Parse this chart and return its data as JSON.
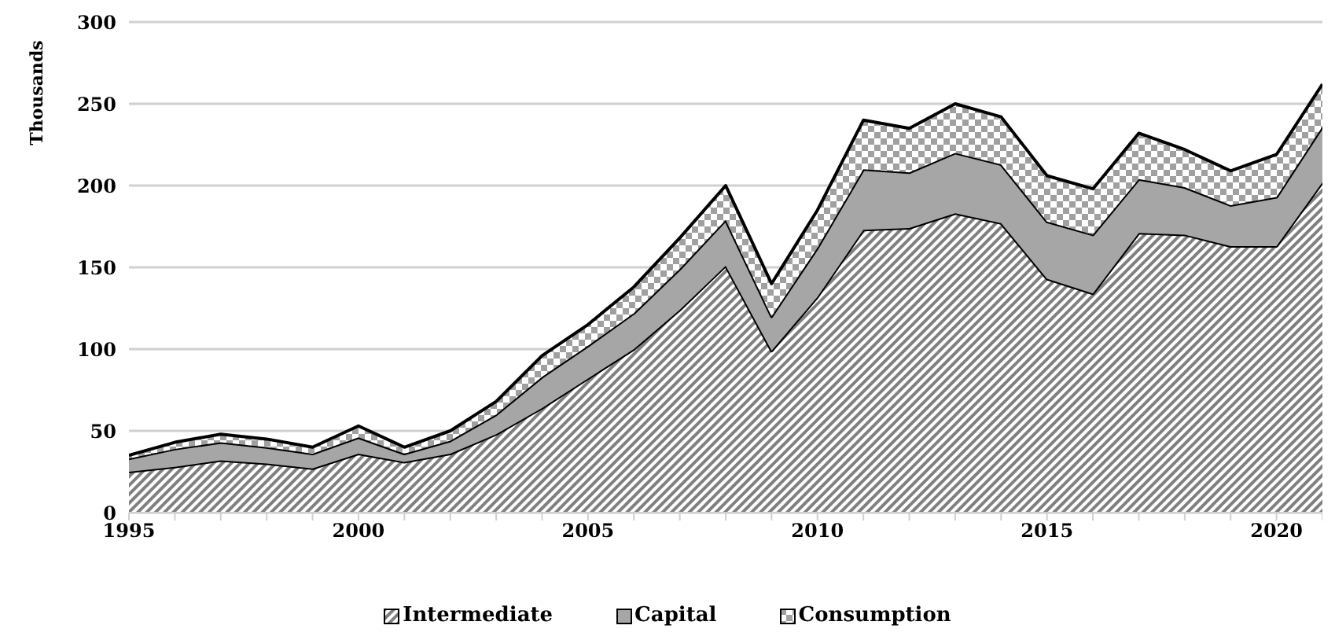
{
  "chart_data": {
    "type": "area",
    "stacked": true,
    "ylabel": "Thousands",
    "x": [
      1995,
      1996,
      1997,
      1998,
      1999,
      2000,
      2001,
      2002,
      2003,
      2004,
      2005,
      2006,
      2007,
      2008,
      2009,
      2010,
      2011,
      2012,
      2013,
      2014,
      2015,
      2016,
      2017,
      2018,
      2019,
      2020,
      2021
    ],
    "series": [
      {
        "name": "Intermediate",
        "color": "#808080",
        "values": [
          25,
          28,
          32,
          30,
          27,
          36,
          31,
          36,
          48,
          64,
          82,
          100,
          124,
          151,
          99,
          132,
          173,
          174,
          183,
          177,
          143,
          134,
          171,
          170,
          163,
          163,
          202
        ]
      },
      {
        "name": "Capital",
        "color": "#a6a6a6",
        "values": [
          8,
          11,
          11,
          10,
          9,
          10,
          5,
          8,
          12,
          19,
          20,
          22,
          25,
          28,
          21,
          30,
          37,
          34,
          37,
          36,
          35,
          36,
          33,
          29,
          25,
          30,
          34
        ]
      },
      {
        "name": "Consumption",
        "color": "#a0a0a0",
        "values": [
          2,
          4,
          5,
          5,
          4,
          7,
          4,
          6,
          8,
          13,
          13,
          16,
          19,
          21,
          20,
          23,
          30,
          27,
          30,
          29,
          28,
          28,
          28,
          23,
          21,
          26,
          26
        ]
      }
    ],
    "xlim": [
      1995,
      2021
    ],
    "xticks": [
      1995,
      {
        "value": 1996,
        "label": null
      },
      {
        "value": 1997,
        "label": null
      },
      {
        "value": 1998,
        "label": null
      },
      {
        "value": 1999,
        "label": null
      },
      2000,
      {
        "value": 2001,
        "label": null
      },
      {
        "value": 2002,
        "label": null
      },
      {
        "value": 2003,
        "label": null
      },
      {
        "value": 2004,
        "label": null
      },
      2005,
      {
        "value": 2006,
        "label": null
      },
      {
        "value": 2007,
        "label": null
      },
      {
        "value": 2008,
        "label": null
      },
      {
        "value": 2009,
        "label": null
      },
      2010,
      {
        "value": 2011,
        "label": null
      },
      {
        "value": 2012,
        "label": null
      },
      {
        "value": 2013,
        "label": null
      },
      {
        "value": 2014,
        "label": null
      },
      2015,
      {
        "value": 2016,
        "label": null
      },
      {
        "value": 2017,
        "label": null
      },
      {
        "value": 2018,
        "label": null
      },
      {
        "value": 2019,
        "label": null
      },
      2020,
      {
        "value": 2021,
        "label": null
      }
    ],
    "ylim": [
      0,
      300
    ],
    "yticks": [
      0,
      50,
      100,
      150,
      200,
      250,
      300
    ],
    "grid": "y",
    "legend": "bottom"
  }
}
